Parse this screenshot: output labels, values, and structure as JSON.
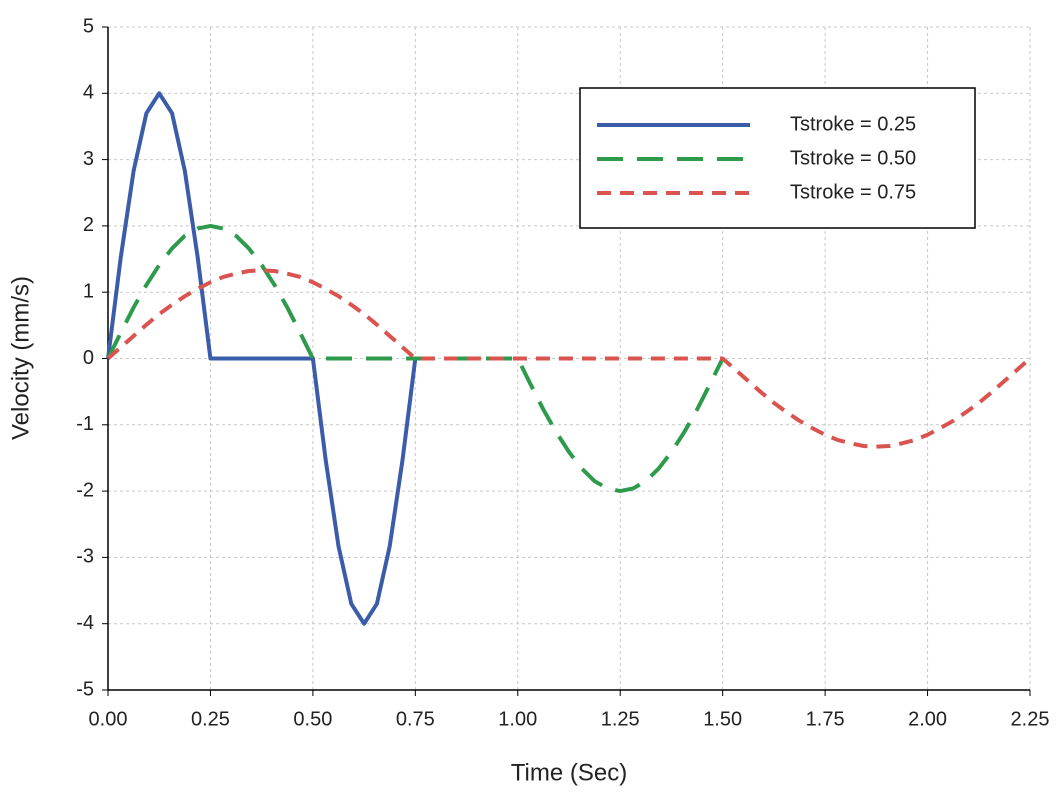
{
  "chart_data": {
    "type": "line",
    "xlabel": "Time (Sec)",
    "ylabel": "Velocity (mm/s)",
    "x": [
      0,
      0.03125,
      0.0625,
      0.09375,
      0.125,
      0.15625,
      0.1875,
      0.21875,
      0.25,
      0.28125,
      0.3125,
      0.34375,
      0.375,
      0.40625,
      0.4375,
      0.46875,
      0.5,
      0.53125,
      0.5625,
      0.59375,
      0.625,
      0.65625,
      0.6875,
      0.71875,
      0.75,
      0.78125,
      0.8125,
      0.84375,
      0.875,
      0.90625,
      0.9375,
      0.96875,
      1,
      1.03125,
      1.0625,
      1.09375,
      1.125,
      1.15625,
      1.1875,
      1.21875,
      1.25,
      1.28125,
      1.3125,
      1.34375,
      1.375,
      1.40625,
      1.4375,
      1.46875,
      1.5,
      1.53125,
      1.5625,
      1.59375,
      1.625,
      1.65625,
      1.6875,
      1.71875,
      1.75,
      1.78125,
      1.8125,
      1.84375,
      1.875,
      1.90625,
      1.9375,
      1.96875,
      2,
      2.03125,
      2.0625,
      2.09375,
      2.125,
      2.15625,
      2.1875,
      2.21875,
      2.25
    ],
    "series": [
      {
        "name": "Tstroke = 0.25",
        "color": "#3b5ca8",
        "linestyle": "solid",
        "values": [
          0,
          1.53,
          2.83,
          3.7,
          4,
          3.7,
          2.83,
          1.53,
          0,
          0,
          0,
          0,
          0,
          0,
          0,
          0,
          0,
          -1.53,
          -2.83,
          -3.7,
          -4,
          -3.7,
          -2.83,
          -1.53,
          0,
          null,
          null,
          null,
          null,
          null,
          null,
          null,
          null,
          null,
          null,
          null,
          null,
          null,
          null,
          null,
          null,
          null,
          null,
          null,
          null,
          null,
          null,
          null,
          null,
          null,
          null,
          null,
          null,
          null,
          null,
          null,
          null,
          null,
          null,
          null,
          null,
          null,
          null,
          null,
          null,
          null,
          null,
          null,
          null,
          null,
          null,
          null,
          null
        ]
      },
      {
        "name": "Tstroke = 0.50",
        "color": "#2e9a4c",
        "linestyle": "dashed",
        "values": [
          0,
          0.39,
          0.77,
          1.11,
          1.41,
          1.66,
          1.85,
          1.96,
          2,
          1.96,
          1.85,
          1.66,
          1.41,
          1.11,
          0.77,
          0.39,
          0,
          0,
          0,
          0,
          0,
          0,
          0,
          0,
          0,
          0,
          0,
          0,
          0,
          0,
          0,
          0,
          0,
          -0.39,
          -0.77,
          -1.11,
          -1.41,
          -1.66,
          -1.85,
          -1.96,
          -2,
          -1.96,
          -1.85,
          -1.66,
          -1.41,
          -1.11,
          -0.77,
          -0.39,
          0,
          null,
          null,
          null,
          null,
          null,
          null,
          null,
          null,
          null,
          null,
          null,
          null,
          null,
          null,
          null,
          null,
          null,
          null,
          null,
          null,
          null,
          null,
          null,
          null
        ]
      },
      {
        "name": "Tstroke = 0.75",
        "color": "#d9534f",
        "linestyle": "short-dashed",
        "values": [
          0,
          0.17,
          0.34,
          0.51,
          0.67,
          0.81,
          0.94,
          1.05,
          1.15,
          1.23,
          1.28,
          1.32,
          1.33,
          1.32,
          1.28,
          1.23,
          1.15,
          1.05,
          0.94,
          0.81,
          0.67,
          0.51,
          0.34,
          0.17,
          0,
          0,
          0,
          0,
          0,
          0,
          0,
          0,
          0,
          0,
          0,
          0,
          0,
          0,
          0,
          0,
          0,
          0,
          0,
          0,
          0,
          0,
          0,
          0,
          0,
          -0.17,
          -0.34,
          -0.51,
          -0.67,
          -0.81,
          -0.94,
          -1.05,
          -1.15,
          -1.23,
          -1.28,
          -1.32,
          -1.33,
          -1.32,
          -1.28,
          -1.23,
          -1.15,
          -1.05,
          -0.94,
          -0.81,
          -0.67,
          -0.51,
          -0.34,
          -0.17,
          0
        ]
      }
    ],
    "xlim": [
      0,
      2.25
    ],
    "ylim": [
      -5,
      5
    ],
    "xticks": [
      {
        "value": 0,
        "label": "0.00"
      },
      {
        "value": 0.25,
        "label": "0.25"
      },
      {
        "value": 0.5,
        "label": "0.50"
      },
      {
        "value": 0.75,
        "label": "0.75"
      },
      {
        "value": 1,
        "label": "1.00"
      },
      {
        "value": 1.25,
        "label": "1.25"
      },
      {
        "value": 1.5,
        "label": "1.50"
      },
      {
        "value": 1.75,
        "label": "1.75"
      },
      {
        "value": 2,
        "label": "2.00"
      },
      {
        "value": 2.25,
        "label": "2.25"
      }
    ],
    "yticks": [
      5,
      4,
      3,
      2,
      1,
      0,
      -1,
      -2,
      -3,
      -4,
      -5
    ],
    "grid": true,
    "legend": "upper right"
  }
}
